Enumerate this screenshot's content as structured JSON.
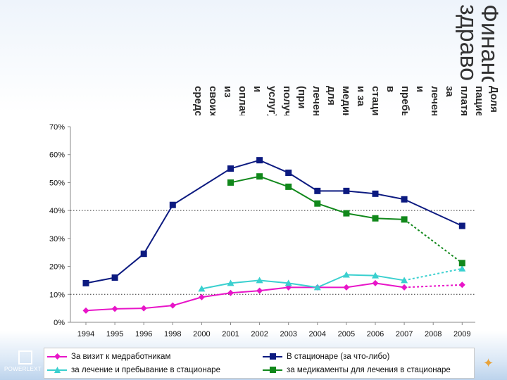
{
  "slide": {
    "title": "Финансирование здравоохранения",
    "subtitle": "Доля пациентов, платящих за лечение и пребывание в стационаре, и за медикаменты для лечения (при получении услуг) и оплачивающих из своих средств"
  },
  "branding": {
    "logo_text": "POWERLEXT"
  },
  "chart_data": {
    "type": "line",
    "title": "",
    "xlabel": "",
    "ylabel": "",
    "ylim": [
      0,
      70
    ],
    "yticks": [
      "0%",
      "10%",
      "20%",
      "30%",
      "40%",
      "50%",
      "60%",
      "70%"
    ],
    "x": [
      "1994",
      "1995",
      "1996",
      "1998",
      "2000",
      "2001",
      "2002",
      "2003",
      "2004",
      "2005",
      "2006",
      "2007",
      "2008",
      "2009"
    ],
    "reference_lines": [
      40,
      10
    ],
    "series": [
      {
        "name": "За визит к медработникам",
        "color": "#e815c8",
        "marker": "diamond",
        "dashed_tail": true,
        "values": [
          4.2,
          4.8,
          5,
          6,
          9,
          10.5,
          11.3,
          12.5,
          12.5,
          12.5,
          14,
          12.5,
          null,
          13.4
        ]
      },
      {
        "name": "за лечение и пребывание в стационаре",
        "color": "#3ad0cf",
        "marker": "triangle",
        "dashed_tail": true,
        "values": [
          null,
          null,
          null,
          null,
          12,
          14,
          15,
          14,
          12.5,
          17,
          16.7,
          15,
          null,
          19.2
        ]
      },
      {
        "name": "В стационаре (за что-либо)",
        "color": "#0c1a80",
        "marker": "square",
        "dashed_tail": false,
        "values": [
          14,
          16,
          24.5,
          42,
          null,
          55,
          58,
          53.5,
          47,
          47,
          46,
          44,
          null,
          34.5
        ]
      },
      {
        "name": "за медикаменты для лечения в стационаре",
        "color": "#11881b",
        "marker": "square",
        "dashed_tail": true,
        "values": [
          null,
          null,
          null,
          null,
          null,
          50,
          52.2,
          48.5,
          42.5,
          39,
          37.2,
          36.8,
          null,
          21.2
        ]
      }
    ]
  }
}
